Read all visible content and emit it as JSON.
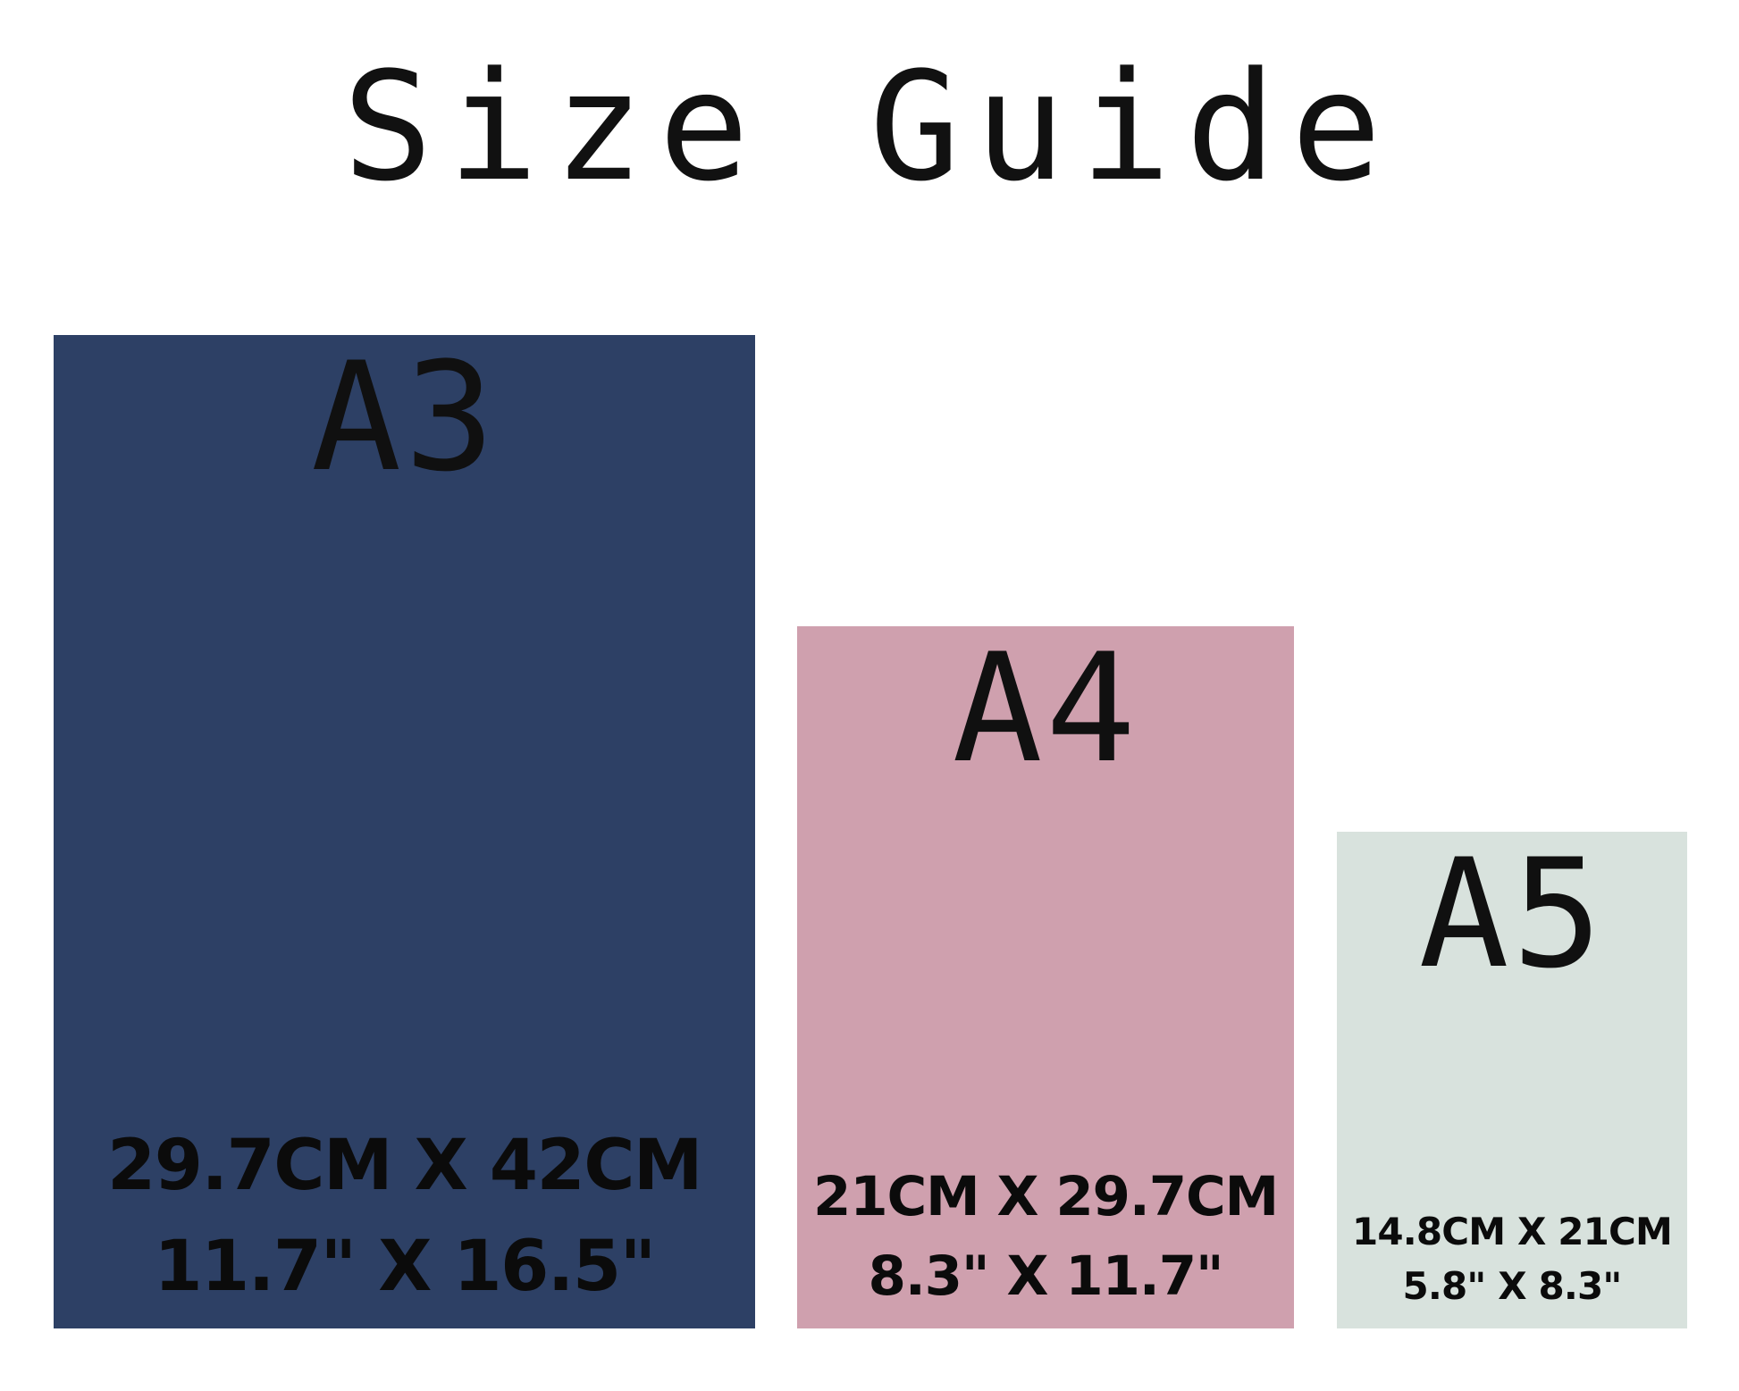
{
  "title": "Size Guide",
  "colors": {
    "background": "#ffffff",
    "title_text": "#111111",
    "label_text": "#101010",
    "dims_text": "#0b0b0b",
    "a3_fill": "#2d4065",
    "a4_fill": "#cfa0ae",
    "a5_fill": "#d8e2dd"
  },
  "cards": [
    {
      "label": "A3",
      "metric": "29.7CM X 42CM",
      "imperial": "11.7\" X 16.5\"",
      "fill": "#2d4065"
    },
    {
      "label": "A4",
      "metric": "21CM X 29.7CM",
      "imperial": "8.3\" X 11.7\"",
      "fill": "#cfa0ae"
    },
    {
      "label": "A5",
      "metric": "14.8CM X 21CM",
      "imperial": "5.8\" X 8.3\"",
      "fill": "#d8e2dd"
    }
  ]
}
